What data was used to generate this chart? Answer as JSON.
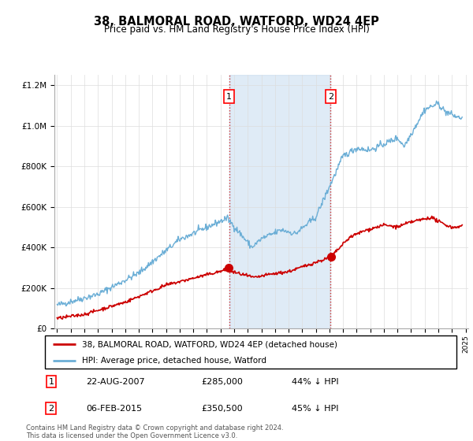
{
  "title": "38, BALMORAL ROAD, WATFORD, WD24 4EP",
  "subtitle": "Price paid vs. HM Land Registry's House Price Index (HPI)",
  "footnote": "Contains HM Land Registry data © Crown copyright and database right 2024.\nThis data is licensed under the Open Government Licence v3.0.",
  "legend_line1": "38, BALMORAL ROAD, WATFORD, WD24 4EP (detached house)",
  "legend_line2": "HPI: Average price, detached house, Watford",
  "transaction1_date": "22-AUG-2007",
  "transaction1_price": "£285,000",
  "transaction1_hpi": "44% ↓ HPI",
  "transaction2_date": "06-FEB-2015",
  "transaction2_price": "£350,500",
  "transaction2_hpi": "45% ↓ HPI",
  "hpi_color": "#6baed6",
  "price_color": "#cc0000",
  "shading_color": "#c6dbef",
  "marker1_x": 2007.63,
  "marker2_x": 2015.09,
  "ylim_max": 1250000,
  "ylim_min": 0,
  "xmin": 1994.8,
  "xmax": 2025.2
}
